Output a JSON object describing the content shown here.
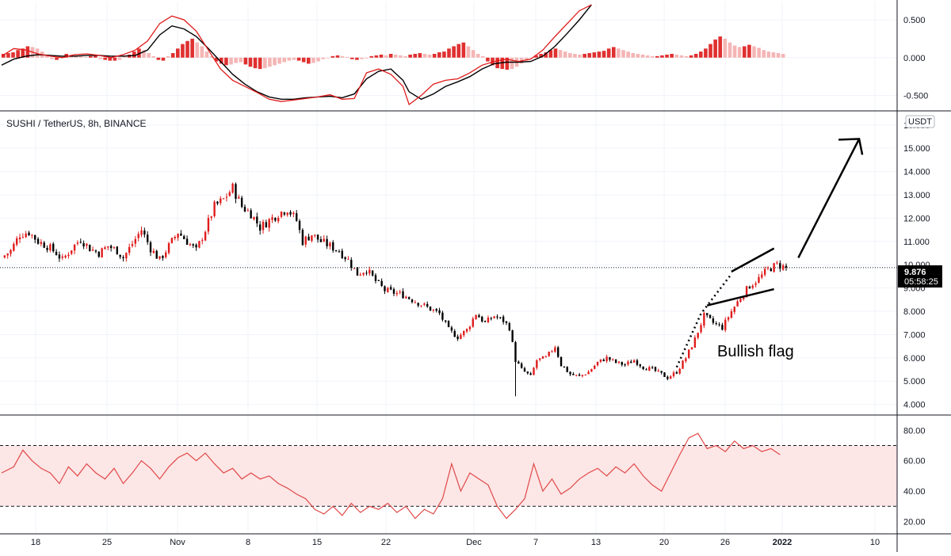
{
  "chart_data": [
    {
      "panel": "macd",
      "type": "line",
      "y_ticks": [
        "0.500",
        "0.000",
        "-0.500"
      ],
      "ylim": [
        -0.62,
        0.72
      ],
      "macd_line": [
        [
          0,
          0.02
        ],
        [
          4,
          0.12
        ],
        [
          8,
          0.1
        ],
        [
          12,
          0.05
        ],
        [
          16,
          0.02
        ],
        [
          20,
          0.0
        ],
        [
          24,
          0.04
        ],
        [
          28,
          0.05
        ],
        [
          32,
          0.03
        ],
        [
          36,
          0.0
        ],
        [
          40,
          0.04
        ],
        [
          44,
          0.1
        ],
        [
          48,
          0.22
        ],
        [
          52,
          0.45
        ],
        [
          56,
          0.55
        ],
        [
          60,
          0.5
        ],
        [
          64,
          0.35
        ],
        [
          68,
          0.1
        ],
        [
          72,
          -0.15
        ],
        [
          76,
          -0.3
        ],
        [
          80,
          -0.38
        ],
        [
          84,
          -0.46
        ],
        [
          88,
          -0.55
        ],
        [
          92,
          -0.58
        ],
        [
          96,
          -0.56
        ],
        [
          100,
          -0.54
        ],
        [
          104,
          -0.52
        ],
        [
          108,
          -0.49
        ],
        [
          112,
          -0.55
        ],
        [
          116,
          -0.54
        ],
        [
          120,
          -0.2
        ],
        [
          124,
          -0.15
        ],
        [
          128,
          -0.22
        ],
        [
          132,
          -0.38
        ],
        [
          134,
          -0.62
        ],
        [
          138,
          -0.5
        ],
        [
          142,
          -0.35
        ],
        [
          146,
          -0.3
        ],
        [
          150,
          -0.28
        ],
        [
          154,
          -0.2
        ],
        [
          158,
          -0.1
        ],
        [
          162,
          -0.05
        ],
        [
          166,
          -0.02
        ],
        [
          170,
          -0.05
        ],
        [
          174,
          -0.02
        ],
        [
          178,
          0.1
        ],
        [
          182,
          0.28
        ],
        [
          186,
          0.45
        ],
        [
          190,
          0.62
        ],
        [
          194,
          0.7
        ]
      ],
      "signal_line": [
        [
          0,
          -0.1
        ],
        [
          4,
          -0.02
        ],
        [
          8,
          0.02
        ],
        [
          12,
          0.04
        ],
        [
          16,
          0.03
        ],
        [
          20,
          0.02
        ],
        [
          24,
          0.02
        ],
        [
          28,
          0.03
        ],
        [
          32,
          0.03
        ],
        [
          36,
          0.02
        ],
        [
          40,
          0.02
        ],
        [
          44,
          0.03
        ],
        [
          48,
          0.1
        ],
        [
          52,
          0.3
        ],
        [
          56,
          0.42
        ],
        [
          60,
          0.38
        ],
        [
          64,
          0.28
        ],
        [
          68,
          0.12
        ],
        [
          72,
          -0.05
        ],
        [
          76,
          -0.22
        ],
        [
          80,
          -0.35
        ],
        [
          84,
          -0.45
        ],
        [
          88,
          -0.52
        ],
        [
          92,
          -0.55
        ],
        [
          96,
          -0.55
        ],
        [
          100,
          -0.53
        ],
        [
          104,
          -0.52
        ],
        [
          108,
          -0.51
        ],
        [
          112,
          -0.53
        ],
        [
          116,
          -0.48
        ],
        [
          120,
          -0.28
        ],
        [
          124,
          -0.18
        ],
        [
          128,
          -0.15
        ],
        [
          132,
          -0.3
        ],
        [
          134,
          -0.45
        ],
        [
          138,
          -0.55
        ],
        [
          142,
          -0.48
        ],
        [
          146,
          -0.38
        ],
        [
          150,
          -0.32
        ],
        [
          154,
          -0.25
        ],
        [
          158,
          -0.15
        ],
        [
          162,
          -0.08
        ],
        [
          166,
          -0.06
        ],
        [
          170,
          -0.06
        ],
        [
          174,
          -0.05
        ],
        [
          178,
          0.02
        ],
        [
          182,
          0.15
        ],
        [
          186,
          0.32
        ],
        [
          190,
          0.5
        ],
        [
          194,
          0.7
        ]
      ],
      "histogram": [
        0.05,
        0.06,
        0.07,
        0.1,
        0.12,
        0.15,
        0.14,
        0.12,
        0.08,
        0.03,
        -0.02,
        -0.03,
        0.02,
        0.05,
        0.04,
        0.03,
        0.02,
        0.01,
        0.02,
        0.03,
        -0.02,
        -0.03,
        -0.04,
        -0.04,
        -0.03,
        0.02,
        0.04,
        0.08,
        0.12,
        0.1,
        0.06,
        0.02,
        -0.03,
        -0.04,
        0.02,
        0.06,
        0.12,
        0.18,
        0.22,
        0.25,
        0.2,
        0.15,
        0.08,
        0.02,
        -0.05,
        -0.08,
        -0.1,
        -0.09,
        -0.07,
        -0.06,
        -0.09,
        -0.12,
        -0.14,
        -0.15,
        -0.14,
        -0.12,
        -0.1,
        -0.08,
        -0.06,
        -0.04,
        -0.03,
        -0.04,
        -0.06,
        -0.08,
        -0.07,
        -0.05,
        -0.02,
        0.0,
        0.02,
        0.03,
        0.02,
        0.01,
        -0.02,
        -0.03,
        -0.02,
        -0.01,
        0.02,
        0.03,
        0.04,
        0.03,
        0.05,
        0.04,
        0.03,
        0.02,
        0.04,
        0.05,
        0.06,
        0.05,
        0.04,
        0.05,
        0.07,
        0.08,
        0.12,
        0.15,
        0.18,
        0.2,
        0.15,
        0.1,
        0.05,
        0.02,
        -0.05,
        -0.1,
        -0.14,
        -0.15,
        -0.16,
        -0.15,
        -0.12,
        -0.08,
        -0.04,
        0.0,
        0.03,
        0.05,
        0.07,
        0.1,
        0.12,
        0.1,
        0.08,
        0.06,
        0.05,
        0.04,
        0.05,
        0.06,
        0.07,
        0.08,
        0.09,
        0.12,
        0.14,
        0.12,
        0.1,
        0.08,
        0.06,
        0.05,
        0.04,
        0.03,
        0.02,
        0.02,
        0.03,
        0.04,
        0.05,
        0.04,
        0.03,
        0.02,
        0.03,
        0.05,
        0.08,
        0.12,
        0.18,
        0.24,
        0.28,
        0.25,
        0.2,
        0.16,
        0.14,
        0.15,
        0.17,
        0.15,
        0.13,
        0.1,
        0.08,
        0.07,
        0.06,
        0.05
      ]
    },
    {
      "panel": "price",
      "type": "candlestick",
      "title": "SUSHI / TetherUS, 8h, BINANCE",
      "currency": "USDT",
      "y_ticks": [
        "16.000",
        "15.000",
        "14.000",
        "13.000",
        "12.000",
        "11.000",
        "10.000",
        "9.000",
        "8.000",
        "7.000",
        "6.000",
        "5.000",
        "4.000"
      ],
      "ylim": [
        3.75,
        16.4
      ],
      "last_price": "9.876",
      "countdown": "05:58:25",
      "last_value": 9.876,
      "close_path": [
        [
          0,
          10.3
        ],
        [
          3,
          10.6
        ],
        [
          6,
          11.3
        ],
        [
          9,
          11.4
        ],
        [
          12,
          11.0
        ],
        [
          15,
          10.8
        ],
        [
          18,
          10.5
        ],
        [
          20,
          10.2
        ],
        [
          23,
          10.7
        ],
        [
          26,
          11.1
        ],
        [
          29,
          10.7
        ],
        [
          32,
          10.5
        ],
        [
          35,
          10.8
        ],
        [
          38,
          10.6
        ],
        [
          40,
          10.3
        ],
        [
          43,
          10.9
        ],
        [
          46,
          11.5
        ],
        [
          49,
          10.7
        ],
        [
          52,
          10.2
        ],
        [
          55,
          10.8
        ],
        [
          58,
          11.4
        ],
        [
          61,
          11.0
        ],
        [
          64,
          10.6
        ],
        [
          67,
          11.5
        ],
        [
          70,
          12.5
        ],
        [
          73,
          12.8
        ],
        [
          76,
          13.3
        ],
        [
          79,
          12.5
        ],
        [
          82,
          12.2
        ],
        [
          85,
          11.6
        ],
        [
          88,
          11.9
        ],
        [
          91,
          12.2
        ],
        [
          94,
          12.4
        ],
        [
          97,
          11.9
        ],
        [
          99,
          11.0
        ],
        [
          102,
          11.3
        ],
        [
          105,
          11.0
        ],
        [
          108,
          10.8
        ],
        [
          111,
          10.6
        ],
        [
          114,
          10.2
        ],
        [
          117,
          9.6
        ],
        [
          120,
          9.8
        ],
        [
          123,
          9.3
        ],
        [
          126,
          8.9
        ],
        [
          129,
          8.8
        ],
        [
          132,
          8.7
        ],
        [
          135,
          8.5
        ],
        [
          138,
          8.3
        ],
        [
          141,
          8.1
        ],
        [
          144,
          7.9
        ],
        [
          147,
          7.2
        ],
        [
          150,
          6.9
        ],
        [
          153,
          7.2
        ],
        [
          156,
          7.9
        ],
        [
          159,
          7.5
        ],
        [
          162,
          7.8
        ],
        [
          165,
          7.6
        ],
        [
          167,
          7.3
        ],
        [
          169,
          5.9
        ],
        [
          171,
          5.5
        ],
        [
          174,
          5.2
        ],
        [
          176,
          5.9
        ],
        [
          179,
          6.0
        ],
        [
          182,
          6.5
        ],
        [
          184,
          5.7
        ],
        [
          187,
          5.3
        ],
        [
          190,
          5.2
        ],
        [
          193,
          5.4
        ],
        [
          196,
          5.8
        ],
        [
          199,
          6.0
        ],
        [
          202,
          5.8
        ],
        [
          205,
          5.7
        ],
        [
          208,
          5.9
        ],
        [
          211,
          5.6
        ],
        [
          214,
          5.5
        ],
        [
          217,
          5.3
        ],
        [
          219,
          5.15
        ],
        [
          222,
          5.4
        ],
        [
          225,
          6.0
        ],
        [
          228,
          6.8
        ],
        [
          231,
          7.8
        ],
        [
          234,
          7.5
        ],
        [
          237,
          7.3
        ],
        [
          240,
          8.0
        ],
        [
          243,
          8.6
        ],
        [
          246,
          9.1
        ],
        [
          249,
          9.4
        ],
        [
          252,
          9.8
        ],
        [
          255,
          10.0
        ],
        [
          258,
          9.876
        ]
      ],
      "annotations": [
        {
          "text": "Bullish flag"
        }
      ]
    },
    {
      "panel": "rsi",
      "type": "line",
      "y_ticks": [
        "80.00",
        "60.00",
        "40.00",
        "20.00"
      ],
      "ylim": [
        14,
        88
      ],
      "bands": [
        30,
        70
      ],
      "series": [
        [
          0,
          52
        ],
        [
          4,
          56
        ],
        [
          7,
          67
        ],
        [
          10,
          60
        ],
        [
          13,
          55
        ],
        [
          16,
          52
        ],
        [
          19,
          45
        ],
        [
          22,
          56
        ],
        [
          25,
          50
        ],
        [
          28,
          58
        ],
        [
          31,
          52
        ],
        [
          34,
          48
        ],
        [
          37,
          55
        ],
        [
          40,
          45
        ],
        [
          43,
          52
        ],
        [
          46,
          60
        ],
        [
          49,
          55
        ],
        [
          52,
          48
        ],
        [
          55,
          56
        ],
        [
          58,
          62
        ],
        [
          61,
          65
        ],
        [
          64,
          60
        ],
        [
          67,
          65
        ],
        [
          70,
          58
        ],
        [
          73,
          52
        ],
        [
          76,
          55
        ],
        [
          79,
          48
        ],
        [
          82,
          52
        ],
        [
          85,
          48
        ],
        [
          88,
          50
        ],
        [
          91,
          45
        ],
        [
          94,
          42
        ],
        [
          97,
          38
        ],
        [
          100,
          35
        ],
        [
          103,
          28
        ],
        [
          106,
          25
        ],
        [
          109,
          30
        ],
        [
          112,
          24
        ],
        [
          115,
          32
        ],
        [
          118,
          26
        ],
        [
          121,
          30
        ],
        [
          124,
          28
        ],
        [
          127,
          32
        ],
        [
          130,
          26
        ],
        [
          133,
          30
        ],
        [
          136,
          22
        ],
        [
          139,
          28
        ],
        [
          142,
          25
        ],
        [
          145,
          35
        ],
        [
          148,
          58
        ],
        [
          151,
          40
        ],
        [
          154,
          52
        ],
        [
          157,
          48
        ],
        [
          160,
          44
        ],
        [
          163,
          30
        ],
        [
          166,
          22
        ],
        [
          169,
          28
        ],
        [
          172,
          35
        ],
        [
          175,
          58
        ],
        [
          178,
          40
        ],
        [
          181,
          48
        ],
        [
          184,
          38
        ],
        [
          187,
          42
        ],
        [
          190,
          48
        ],
        [
          193,
          52
        ],
        [
          196,
          55
        ],
        [
          199,
          50
        ],
        [
          202,
          56
        ],
        [
          205,
          52
        ],
        [
          208,
          58
        ],
        [
          211,
          50
        ],
        [
          214,
          44
        ],
        [
          217,
          40
        ],
        [
          220,
          52
        ],
        [
          223,
          64
        ],
        [
          226,
          75
        ],
        [
          229,
          78
        ],
        [
          232,
          68
        ],
        [
          235,
          70
        ],
        [
          238,
          66
        ],
        [
          241,
          73
        ],
        [
          244,
          68
        ],
        [
          247,
          70
        ],
        [
          250,
          66
        ],
        [
          253,
          68
        ],
        [
          256,
          64
        ]
      ]
    }
  ],
  "x_axis": {
    "labels": [
      "18",
      "25",
      "Nov",
      "8",
      "15",
      "22",
      "Dec",
      "7",
      "13",
      "20",
      "26",
      "2022",
      "10"
    ]
  },
  "colors": {
    "up": "#e01b1b",
    "down": "#000000",
    "macd_line": "#e01b1b",
    "signal_line": "#000000",
    "hist_strong": "#e03030",
    "hist_weak": "#f5b5b5",
    "rsi_line": "#e04848",
    "rsi_band": "#fde6e6"
  }
}
